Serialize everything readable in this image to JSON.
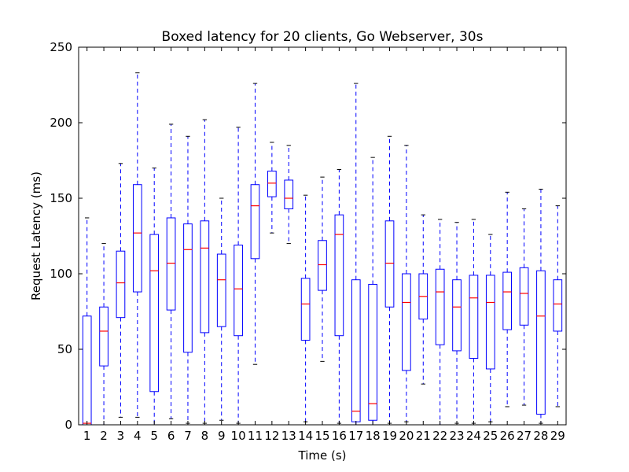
{
  "chart_data": {
    "type": "boxplot",
    "title": "Boxed latency for 20 clients, Go Webserver, 30s",
    "xlabel": "Time (s)",
    "ylabel": "Request Latency (ms)",
    "ylim": [
      0,
      250
    ],
    "yticks": [
      0,
      50,
      100,
      150,
      200,
      250
    ],
    "grid": false,
    "colors": {
      "box": "#0000ff",
      "median": "#ff0000",
      "cap": "#000000"
    },
    "categories": [
      "1",
      "2",
      "3",
      "4",
      "5",
      "6",
      "7",
      "8",
      "9",
      "10",
      "11",
      "12",
      "13",
      "14",
      "15",
      "16",
      "17",
      "18",
      "19",
      "20",
      "21",
      "22",
      "23",
      "24",
      "25",
      "26",
      "27",
      "28",
      "29"
    ],
    "boxes": [
      {
        "min": 0,
        "q1": 0,
        "median": 1,
        "q3": 72,
        "max": 137
      },
      {
        "min": 0,
        "q1": 39,
        "median": 62,
        "q3": 78,
        "max": 120
      },
      {
        "min": 5,
        "q1": 71,
        "median": 94,
        "q3": 115,
        "max": 173
      },
      {
        "min": 5,
        "q1": 88,
        "median": 127,
        "q3": 159,
        "max": 233
      },
      {
        "min": 0,
        "q1": 22,
        "median": 102,
        "q3": 126,
        "max": 170
      },
      {
        "min": 4,
        "q1": 76,
        "median": 107,
        "q3": 137,
        "max": 199
      },
      {
        "min": 1,
        "q1": 48,
        "median": 116,
        "q3": 133,
        "max": 191
      },
      {
        "min": 1,
        "q1": 61,
        "median": 117,
        "q3": 135,
        "max": 202
      },
      {
        "min": 3,
        "q1": 65,
        "median": 96,
        "q3": 113,
        "max": 150
      },
      {
        "min": 1,
        "q1": 59,
        "median": 90,
        "q3": 119,
        "max": 197
      },
      {
        "min": 40,
        "q1": 110,
        "median": 145,
        "q3": 159,
        "max": 226
      },
      {
        "min": 127,
        "q1": 151,
        "median": 160,
        "q3": 168,
        "max": 187
      },
      {
        "min": 120,
        "q1": 143,
        "median": 150,
        "q3": 162,
        "max": 185
      },
      {
        "min": 2,
        "q1": 56,
        "median": 80,
        "q3": 97,
        "max": 152
      },
      {
        "min": 42,
        "q1": 89,
        "median": 106,
        "q3": 122,
        "max": 164
      },
      {
        "min": 1,
        "q1": 59,
        "median": 126,
        "q3": 139,
        "max": 169
      },
      {
        "min": 0,
        "q1": 2,
        "median": 9,
        "q3": 96,
        "max": 226
      },
      {
        "min": 0,
        "q1": 3,
        "median": 14,
        "q3": 93,
        "max": 177
      },
      {
        "min": 1,
        "q1": 78,
        "median": 107,
        "q3": 135,
        "max": 191
      },
      {
        "min": 2,
        "q1": 36,
        "median": 81,
        "q3": 100,
        "max": 185
      },
      {
        "min": 27,
        "q1": 70,
        "median": 85,
        "q3": 100,
        "max": 139
      },
      {
        "min": 0,
        "q1": 53,
        "median": 88,
        "q3": 103,
        "max": 136
      },
      {
        "min": 1,
        "q1": 49,
        "median": 78,
        "q3": 96,
        "max": 134
      },
      {
        "min": 1,
        "q1": 44,
        "median": 84,
        "q3": 99,
        "max": 136
      },
      {
        "min": 2,
        "q1": 37,
        "median": 81,
        "q3": 99,
        "max": 126
      },
      {
        "min": 12,
        "q1": 63,
        "median": 88,
        "q3": 101,
        "max": 154
      },
      {
        "min": 13,
        "q1": 66,
        "median": 87,
        "q3": 104,
        "max": 143
      },
      {
        "min": 1,
        "q1": 7,
        "median": 72,
        "q3": 102,
        "max": 156
      },
      {
        "min": 12,
        "q1": 62,
        "median": 80,
        "q3": 96,
        "max": 145
      }
    ]
  }
}
